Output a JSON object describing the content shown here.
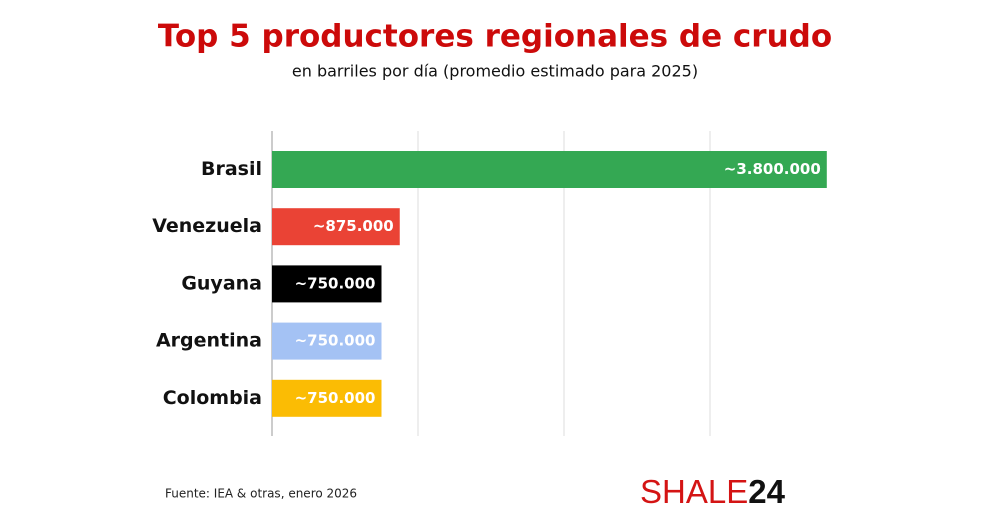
{
  "chart_data": {
    "type": "barh",
    "title": "Top 5 productores regionales de crudo",
    "subtitle": "en barriles por día (promedio estimado para 2025)",
    "categories": [
      "Brasil",
      "Venezuela",
      "Guyana",
      "Argentina",
      "Colombia"
    ],
    "values": [
      3800000,
      875000,
      750000,
      750000,
      750000
    ],
    "value_labels": [
      "~3.800.000",
      "~875.000",
      "~750.000",
      "~750.000",
      "~750.000"
    ],
    "colors": [
      "#34a853",
      "#ea4335",
      "#000000",
      "#a4c2f4",
      "#fbbc04"
    ],
    "xlim": [
      0,
      4000000
    ],
    "xticks": [
      1000000,
      2000000,
      3000000
    ],
    "grid": true
  },
  "footer": {
    "source": "Fuente: IEA & otras, enero 2026",
    "logo_main": "SHALE",
    "logo_accent": "24"
  }
}
